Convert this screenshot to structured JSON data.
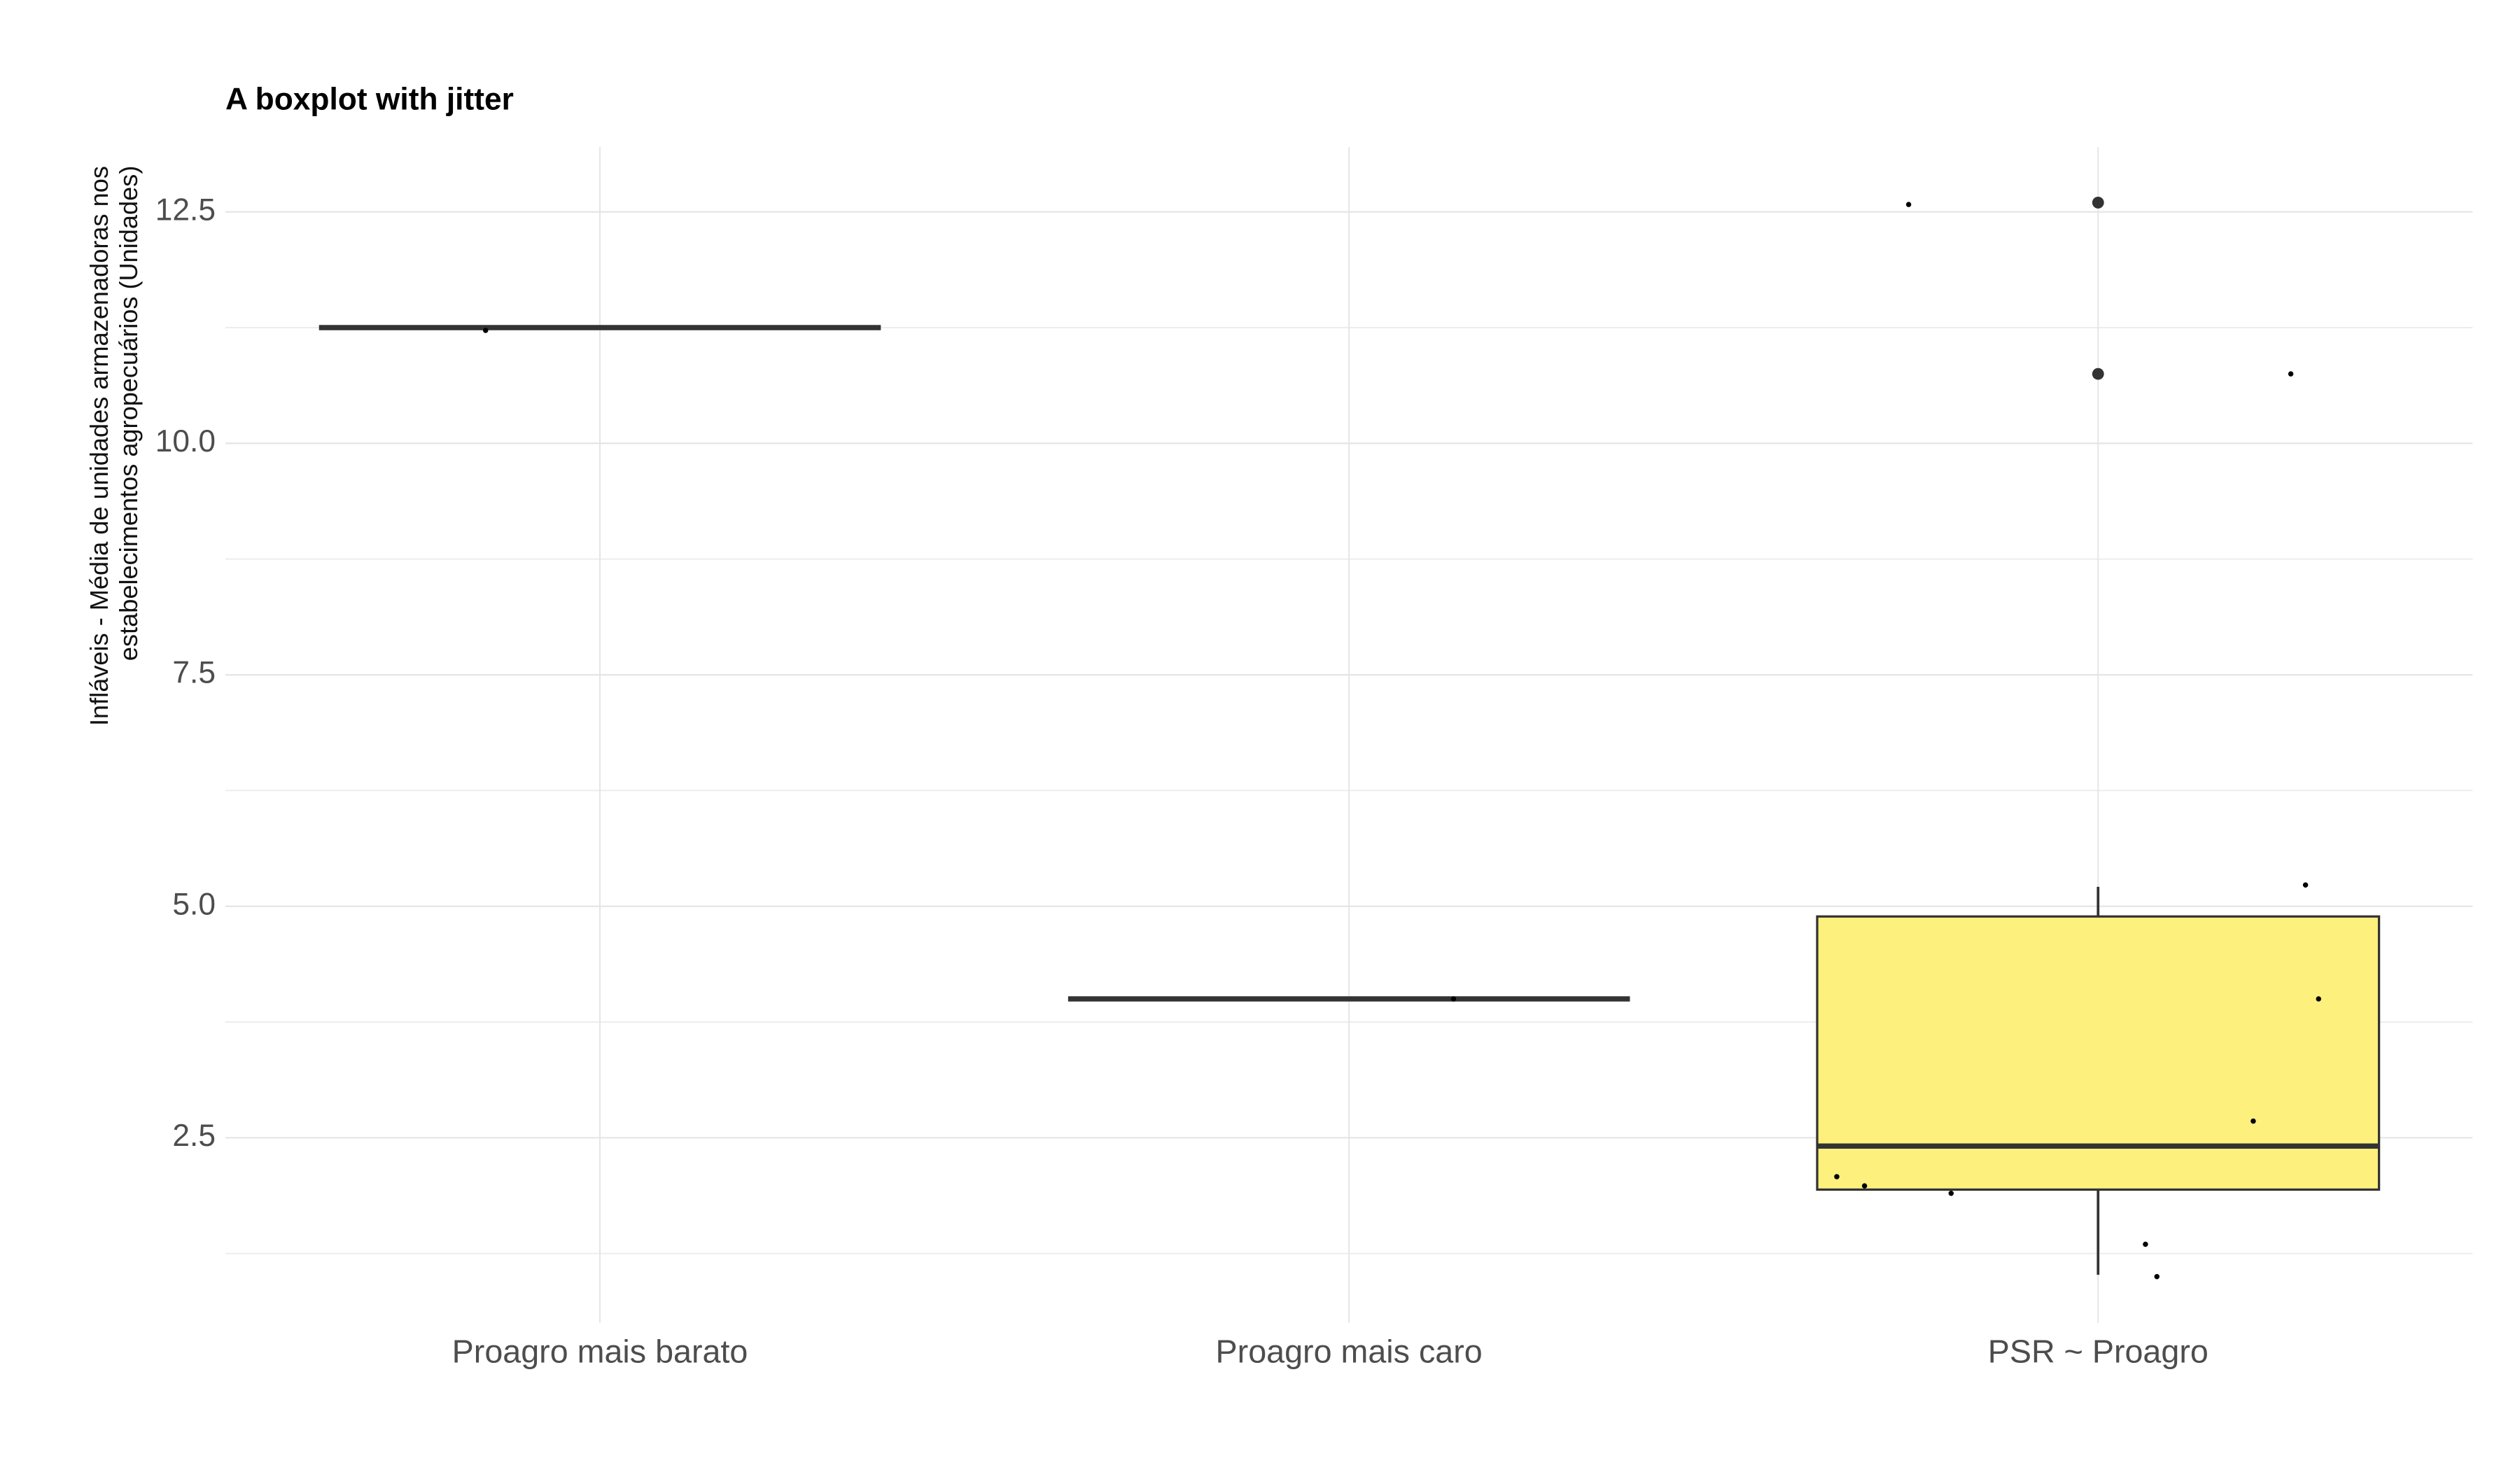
{
  "chart_data": {
    "type": "boxplot",
    "title": "A boxplot with jitter",
    "ylabel": [
      "Infláveis - Média de unidades armazenadoras nos",
      "estabelecimentos agropecuários (Unidades)"
    ],
    "categories": [
      "Proagro mais barato",
      "Proagro mais caro",
      "PSR ~ Proagro"
    ],
    "boxes": [
      {
        "min": 11.25,
        "q1": 11.25,
        "median": 11.25,
        "q3": 11.25,
        "max": 11.25,
        "outliers": []
      },
      {
        "min": 4.0,
        "q1": 4.0,
        "median": 4.0,
        "q3": 4.0,
        "max": 4.0,
        "outliers": []
      },
      {
        "min": 1.02,
        "q1": 1.94,
        "median": 2.41,
        "q3": 4.89,
        "max": 5.21,
        "outliers": [
          12.6,
          10.75
        ]
      }
    ],
    "points": [
      [
        11.22
      ],
      [
        4.0
      ],
      [
        12.58,
        10.75,
        5.23,
        4.0,
        2.68,
        2.08,
        1.98,
        1.9,
        1.35,
        1.0
      ]
    ],
    "box_color": "#fdf07d",
    "line_color": "#333333",
    "point_color": "#000000",
    "ylim": [
      0.5,
      13.2
    ],
    "yticks": [
      {
        "value": 2.5,
        "label": "2.5"
      },
      {
        "value": 5,
        "label": "5.0"
      },
      {
        "value": 7.5,
        "label": "7.5"
      },
      {
        "value": 10,
        "label": "10.0"
      },
      {
        "value": 12.5,
        "label": "12.5"
      }
    ],
    "minor_yticks": [
      1.25,
      3.75,
      6.25,
      8.75,
      11.25
    ],
    "grid": true
  }
}
